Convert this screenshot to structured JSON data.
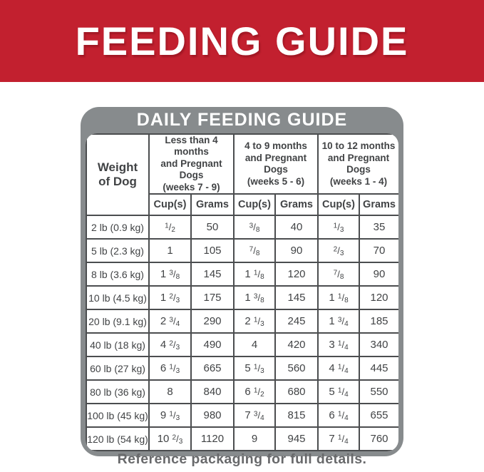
{
  "page": {
    "banner": {
      "title": "FEEDING GUIDE",
      "bg_color": "#c2202f",
      "text_color": "#ffffff"
    },
    "panel": {
      "title": "DAILY FEEDING GUIDE",
      "bg_color": "#878b8d",
      "title_color": "#ffffff"
    },
    "footer": {
      "text": "Reference packaging for full details.",
      "text_color": "#68696b"
    },
    "colors": {
      "grid_line": "#4b4d4f",
      "cell_text": "#414345",
      "table_bg": "#ffffff"
    }
  },
  "table": {
    "weight_header_lines": [
      "Weight",
      "of Dog"
    ],
    "column_groups": [
      {
        "label_lines": [
          "Less than 4 months",
          "and Pregnant Dogs",
          "(weeks 7 - 9)"
        ]
      },
      {
        "label_lines": [
          "4 to 9 months",
          "and Pregnant Dogs",
          "(weeks 5 - 6)"
        ]
      },
      {
        "label_lines": [
          "10 to 12 months",
          "and Pregnant Dogs",
          "(weeks 1 - 4)"
        ]
      }
    ],
    "subheaders": [
      "Cup(s)",
      "Grams"
    ],
    "rows": [
      {
        "weight": "2 lb (0.9 kg)",
        "values": [
          "1/2",
          "50",
          "3/8",
          "40",
          "1/3",
          "35"
        ]
      },
      {
        "weight": "5 lb (2.3 kg)",
        "values": [
          "1",
          "105",
          "7/8",
          "90",
          "2/3",
          "70"
        ]
      },
      {
        "weight": "8 lb (3.6 kg)",
        "values": [
          "1 3/8",
          "145",
          "1 1/8",
          "120",
          "7/8",
          "90"
        ]
      },
      {
        "weight": "10 lb (4.5 kg)",
        "values": [
          "1 2/3",
          "175",
          "1 3/8",
          "145",
          "1 1/8",
          "120"
        ]
      },
      {
        "weight": "20 lb (9.1 kg)",
        "values": [
          "2 3/4",
          "290",
          "2 1/3",
          "245",
          "1 3/4",
          "185"
        ]
      },
      {
        "weight": "40 lb (18 kg)",
        "values": [
          "4 2/3",
          "490",
          "4",
          "420",
          "3 1/4",
          "340"
        ]
      },
      {
        "weight": "60 lb (27 kg)",
        "values": [
          "6 1/3",
          "665",
          "5 1/3",
          "560",
          "4 1/4",
          "445"
        ]
      },
      {
        "weight": "80 lb (36 kg)",
        "values": [
          "8",
          "840",
          "6 1/2",
          "680",
          "5 1/4",
          "550"
        ]
      },
      {
        "weight": "100 lb (45 kg)",
        "values": [
          "9 1/3",
          "980",
          "7 3/4",
          "815",
          "6 1/4",
          "655"
        ]
      },
      {
        "weight": "120 lb (54 kg)",
        "values": [
          "10 2/3",
          "1120",
          "9",
          "945",
          "7 1/4",
          "760"
        ]
      }
    ]
  }
}
